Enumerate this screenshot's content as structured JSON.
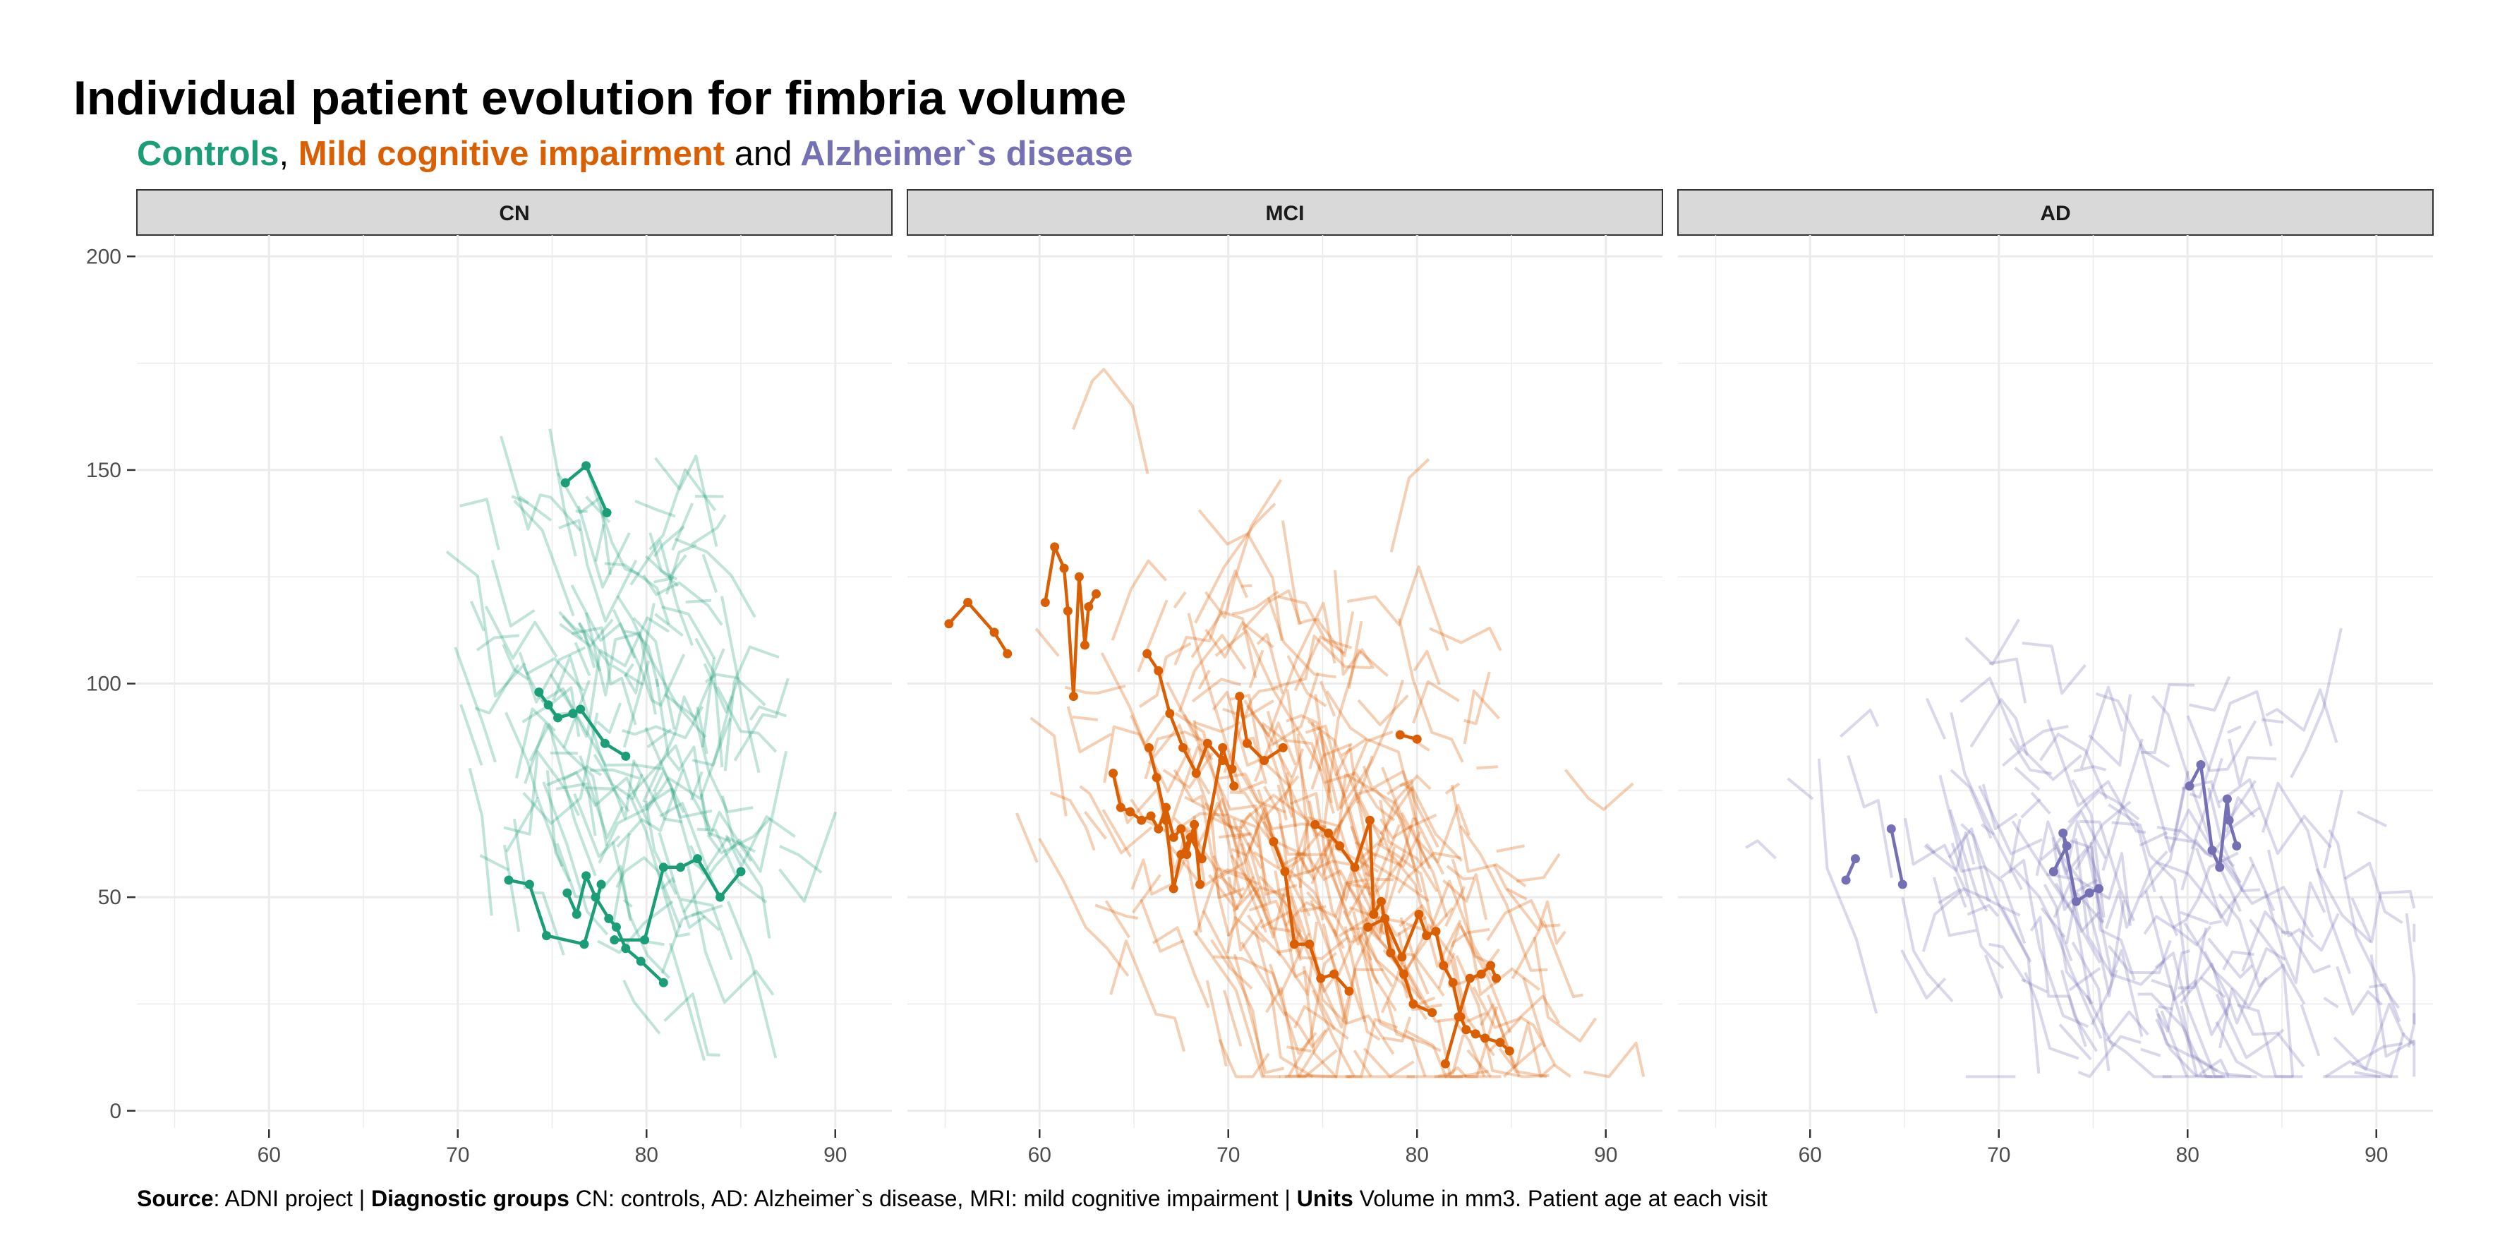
{
  "title": "Individual patient evolution for fimbria volume",
  "subtitle": {
    "g1": "Controls",
    "sep1": ",",
    "g2": "Mild cognitive impairment",
    "sep2": "and",
    "g3": "Alzheimer`s disease"
  },
  "caption": {
    "source_label": "Source",
    "source_text": ": ADNI project | ",
    "groups_label": "Diagnostic groups",
    "groups_text": " CN: controls, AD: Alzheimer`s disease, MRI: mild cognitive impairment | ",
    "units_label": "Units",
    "units_text": " Volume in mm3. Patient age at each visit"
  },
  "chart_data": {
    "type": "line",
    "x_ticks": [
      60,
      70,
      80,
      90
    ],
    "y_ticks": [
      0,
      50,
      100,
      150,
      200
    ],
    "xlim": [
      53,
      93
    ],
    "ylim": [
      -4,
      205
    ],
    "grid": true,
    "panels": [
      {
        "name": "CN",
        "color": "#1b9e77",
        "highlighted": [
          [
            [
              75.7,
              147
            ],
            [
              76.8,
              151
            ],
            [
              77.9,
              140
            ]
          ],
          [
            [
              74.3,
              98
            ],
            [
              74.8,
              95
            ],
            [
              75.3,
              92
            ],
            [
              76.1,
              93
            ],
            [
              76.5,
              94
            ],
            [
              77.8,
              86
            ],
            [
              78.9,
              83
            ]
          ],
          [
            [
              72.7,
              54
            ],
            [
              73.8,
              53
            ],
            [
              74.7,
              41
            ],
            [
              76.7,
              39
            ],
            [
              77.6,
              53
            ]
          ],
          [
            [
              75.8,
              51
            ],
            [
              76.3,
              46
            ],
            [
              76.8,
              55
            ],
            [
              77.3,
              50
            ],
            [
              78,
              45
            ],
            [
              78.4,
              43
            ],
            [
              78.9,
              38
            ],
            [
              79.7,
              35
            ],
            [
              80.9,
              30
            ]
          ],
          [
            [
              78.3,
              40
            ],
            [
              79.9,
              40
            ],
            [
              80.9,
              57
            ],
            [
              81.8,
              57
            ],
            [
              82.7,
              59
            ],
            [
              83.9,
              50
            ],
            [
              85,
              56
            ]
          ]
        ]
      },
      {
        "name": "MCI",
        "color": "#d95f02",
        "highlighted": [
          [
            [
              55.2,
              114
            ],
            [
              56.2,
              119
            ],
            [
              57.6,
              112
            ],
            [
              58.3,
              107
            ]
          ],
          [
            [
              60.3,
              119
            ],
            [
              60.8,
              132
            ],
            [
              61.3,
              127
            ],
            [
              61.5,
              117
            ],
            [
              61.8,
              97
            ],
            [
              62.1,
              125
            ],
            [
              62.4,
              109
            ],
            [
              62.6,
              118
            ],
            [
              63,
              121
            ]
          ],
          [
            [
              65.7,
              107
            ],
            [
              66.3,
              103
            ],
            [
              66.9,
              93
            ],
            [
              67.6,
              85
            ],
            [
              68.3,
              79
            ],
            [
              68.9,
              86
            ],
            [
              69.7,
              82
            ],
            [
              70.2,
              80
            ],
            [
              70.6,
              97
            ],
            [
              71,
              86
            ],
            [
              71.9,
              82
            ],
            [
              72.9,
              85
            ]
          ],
          [
            [
              63.9,
              79
            ],
            [
              64.3,
              71
            ],
            [
              64.8,
              70
            ],
            [
              65.4,
              68
            ],
            [
              65.9,
              69
            ],
            [
              66.3,
              66
            ],
            [
              66.7,
              71
            ],
            [
              67.1,
              64
            ],
            [
              67.5,
              66
            ],
            [
              67.8,
              60
            ],
            [
              68.2,
              67
            ],
            [
              68.5,
              53
            ]
          ],
          [
            [
              65.8,
              85
            ],
            [
              66.2,
              78
            ],
            [
              66.7,
              68
            ],
            [
              67.1,
              52
            ],
            [
              67.5,
              60
            ],
            [
              68,
              64
            ],
            [
              68.6,
              59
            ],
            [
              69.7,
              85
            ],
            [
              70.3,
              76
            ]
          ],
          [
            [
              72.4,
              63
            ],
            [
              73,
              56
            ],
            [
              73.5,
              39
            ],
            [
              74.3,
              39
            ],
            [
              74.9,
              31
            ],
            [
              75.6,
              32
            ],
            [
              76.4,
              28
            ]
          ],
          [
            [
              74.6,
              67
            ],
            [
              75.3,
              65
            ],
            [
              75.9,
              62
            ],
            [
              76.7,
              57
            ],
            [
              77.5,
              68
            ],
            [
              77.7,
              46
            ],
            [
              78.1,
              49
            ],
            [
              78.6,
              37
            ],
            [
              79.3,
              32
            ],
            [
              79.8,
              25
            ],
            [
              80.8,
              23
            ]
          ],
          [
            [
              77.4,
              43
            ],
            [
              78.3,
              45
            ],
            [
              79.2,
              36
            ],
            [
              80.1,
              46
            ],
            [
              80.5,
              41
            ],
            [
              81,
              42
            ],
            [
              81.4,
              34
            ],
            [
              81.9,
              30
            ],
            [
              82.3,
              22
            ],
            [
              82.6,
              19
            ],
            [
              83.1,
              18
            ],
            [
              83.6,
              17
            ],
            [
              84.4,
              16
            ],
            [
              84.9,
              14
            ]
          ],
          [
            [
              81.5,
              11
            ],
            [
              82.2,
              22
            ],
            [
              82.8,
              31
            ],
            [
              83.4,
              32
            ],
            [
              83.9,
              34
            ],
            [
              84.2,
              31
            ]
          ],
          [
            [
              79.1,
              88
            ],
            [
              80,
              87
            ]
          ]
        ]
      },
      {
        "name": "AD",
        "color": "#7570b3",
        "highlighted": [
          [
            [
              61.9,
              54
            ],
            [
              62.4,
              59
            ]
          ],
          [
            [
              64.3,
              66
            ],
            [
              64.9,
              53
            ]
          ],
          [
            [
              72.9,
              56
            ],
            [
              73.6,
              62
            ],
            [
              73.4,
              65
            ],
            [
              74.1,
              49
            ],
            [
              74.8,
              51
            ],
            [
              75.3,
              52
            ]
          ],
          [
            [
              80.1,
              76
            ],
            [
              80.7,
              81
            ],
            [
              81.3,
              61
            ],
            [
              81.7,
              57
            ],
            [
              82.1,
              73
            ],
            [
              82.2,
              68
            ],
            [
              82.6,
              62
            ]
          ]
        ]
      }
    ]
  }
}
